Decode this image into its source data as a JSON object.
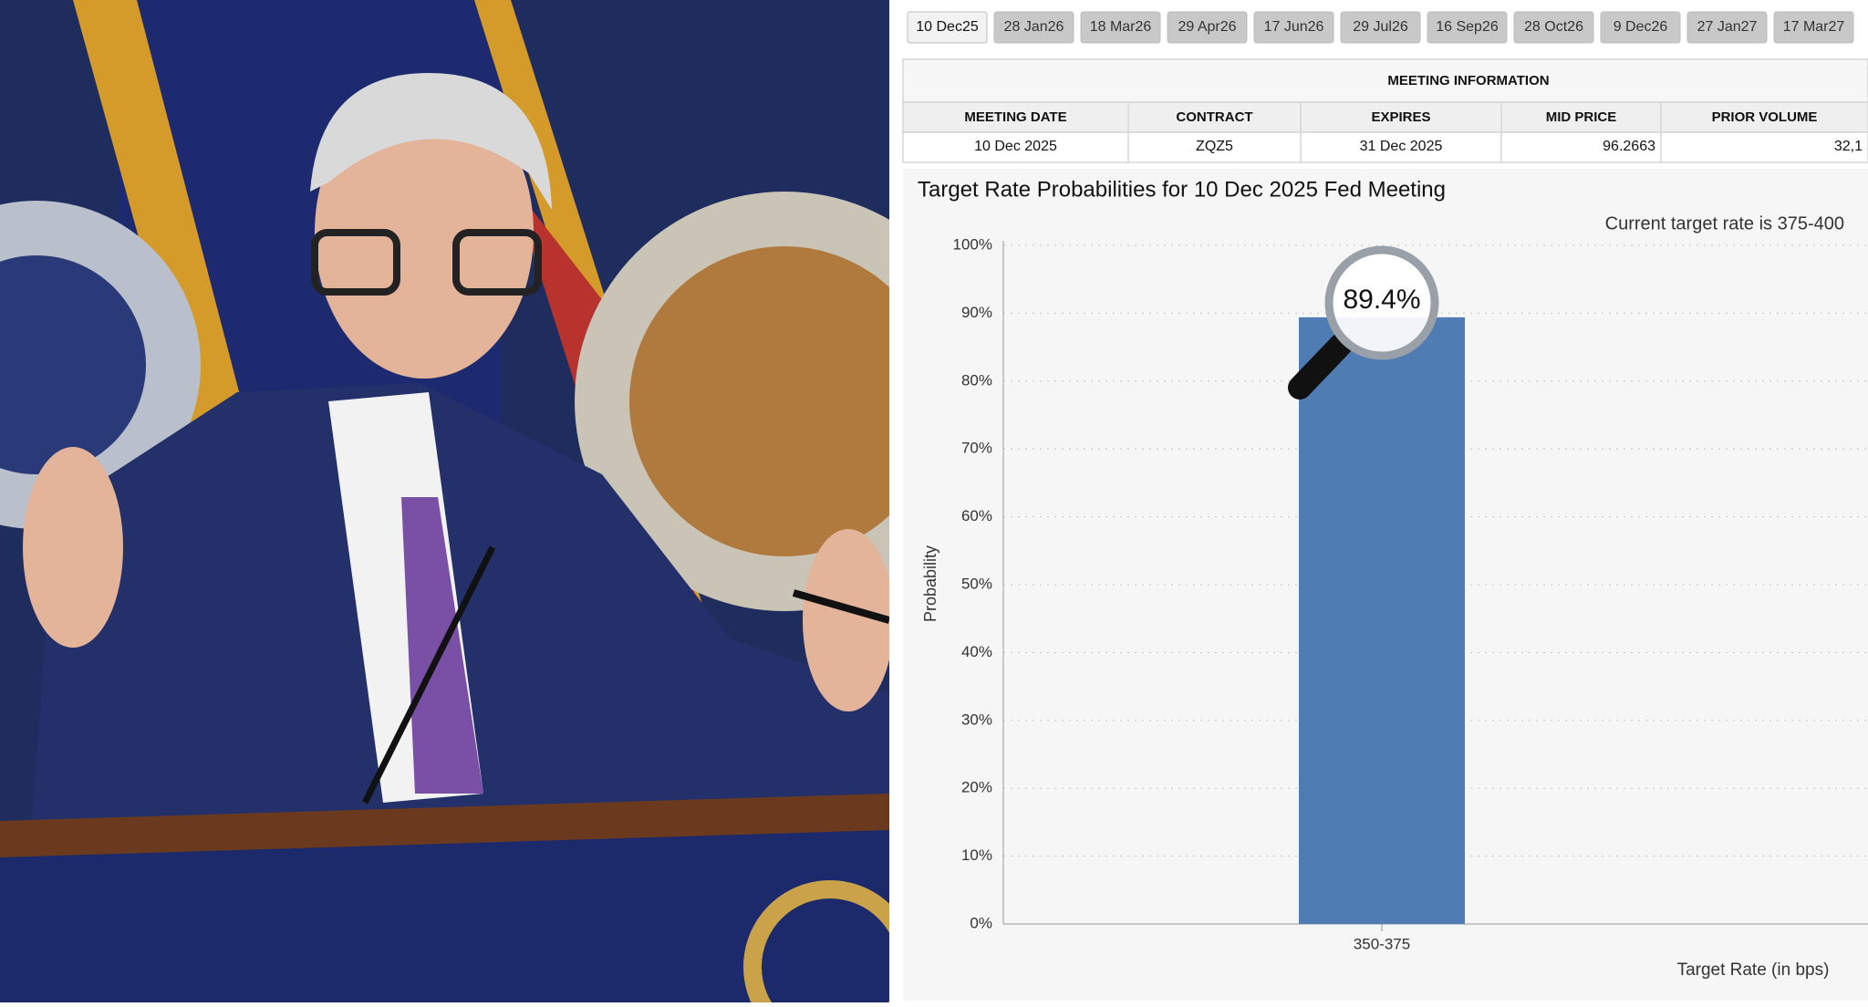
{
  "tabs": [
    "10 Dec25",
    "28 Jan26",
    "18 Mar26",
    "29 Apr26",
    "17 Jun26",
    "29 Jul26",
    "16 Sep26",
    "28 Oct26",
    "9 Dec26",
    "27 Jan27",
    "17 Mar27"
  ],
  "table": {
    "title": "MEETING INFORMATION",
    "headers": [
      "MEETING DATE",
      "CONTRACT",
      "EXPIRES",
      "MID PRICE",
      "PRIOR VOLUME"
    ],
    "rows": [
      [
        "10 Dec 2025",
        "ZQZ5",
        "31 Dec 2025",
        "96.2663",
        "32,1"
      ]
    ]
  },
  "chart_data": {
    "type": "bar",
    "title": "Target Rate Probabilities for 10 Dec 2025 Fed Meeting",
    "subtitle": "Current target rate is 375-400",
    "x_label": "Target Rate (in bps)",
    "y_label": "Probability",
    "categories": [
      "350-375"
    ],
    "values": [
      89.4
    ],
    "value_labels": [
      "89.4%"
    ],
    "color": "#4f7db3",
    "ylim": [
      0,
      100
    ],
    "yticks": [
      {
        "value": 0,
        "label": "0%"
      },
      {
        "value": 10,
        "label": "10%"
      },
      {
        "value": 20,
        "label": "20%"
      },
      {
        "value": 30,
        "label": "30%"
      },
      {
        "value": 40,
        "label": "40%"
      },
      {
        "value": 50,
        "label": "50%"
      },
      {
        "value": 60,
        "label": "60%"
      },
      {
        "value": 70,
        "label": "70%"
      },
      {
        "value": 80,
        "label": "80%"
      },
      {
        "value": 90,
        "label": "90%"
      },
      {
        "value": 100,
        "label": "100%"
      }
    ],
    "grid": true
  }
}
